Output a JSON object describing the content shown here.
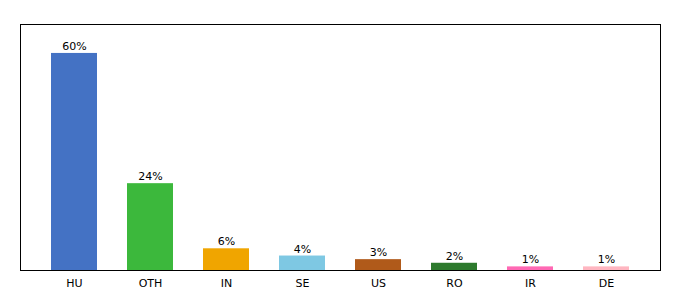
{
  "chart_data": {
    "type": "bar",
    "categories": [
      "HU",
      "OTH",
      "IN",
      "SE",
      "US",
      "RO",
      "IR",
      "DE"
    ],
    "values": [
      60,
      24,
      6,
      4,
      3,
      2,
      1,
      1
    ],
    "value_labels": [
      "60%",
      "24%",
      "6%",
      "4%",
      "3%",
      "2%",
      "1%",
      "1%"
    ],
    "colors": [
      "#4472c4",
      "#3cb83c",
      "#f0a500",
      "#7ec8e3",
      "#b05a1a",
      "#2d7a2d",
      "#ff69b4",
      "#ffb6c1"
    ],
    "ylim": [
      0,
      68
    ],
    "data_labels": true,
    "tick_labels": "x",
    "grid": false
  }
}
